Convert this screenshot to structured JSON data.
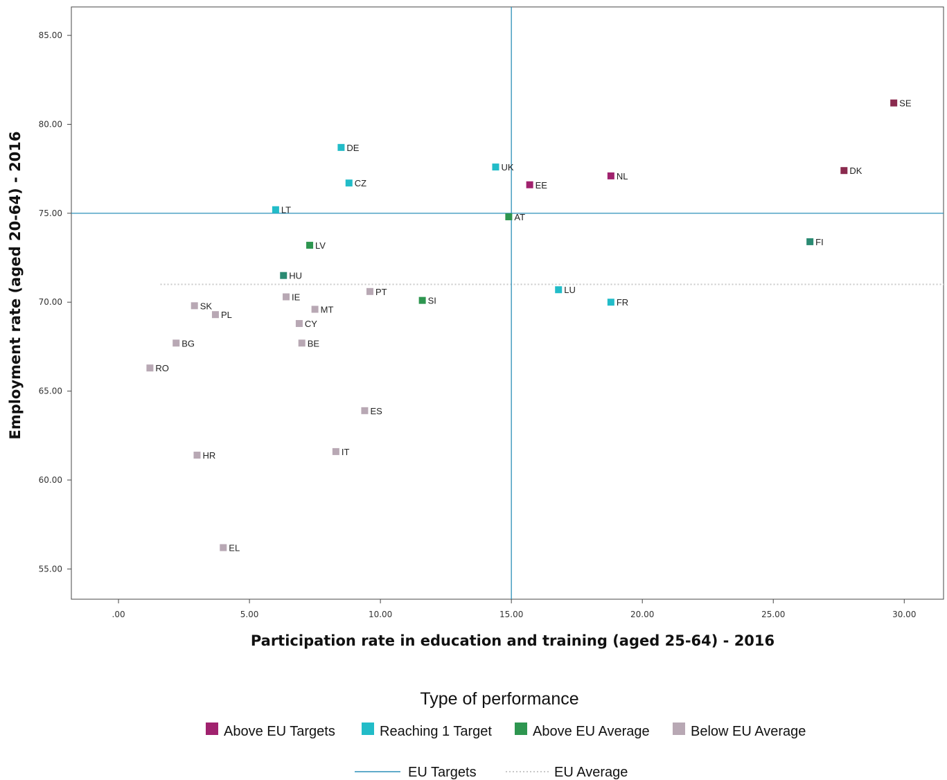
{
  "chart_data": {
    "type": "scatter",
    "xlabel": "Participation rate in education and training (aged 25-64) - 2016",
    "ylabel": "Employment rate  (aged 20-64) - 2016",
    "xlim": [
      -1.8,
      31.5
    ],
    "ylim": [
      53.3,
      86.6
    ],
    "x_ticks": [
      0,
      5,
      10,
      15,
      20,
      25,
      30
    ],
    "x_tick_labels": [
      ".00",
      "5.00",
      "10.00",
      "15.00",
      "20.00",
      "25.00",
      "30.00"
    ],
    "y_ticks": [
      55,
      60,
      65,
      70,
      75,
      80,
      85
    ],
    "y_tick_labels": [
      "55.00",
      "60.00",
      "65.00",
      "70.00",
      "75.00",
      "80.00",
      "85.00"
    ],
    "eu_target_x": 15.0,
    "eu_target_y": 75.0,
    "eu_average_y": 71.0,
    "eu_average_x_start": 1.6,
    "colors": {
      "above_targets": "#a0226e",
      "above_targets_dark": "#8a2a4e",
      "reaching_1_target": "#22bcc8",
      "above_average": "#2e9650",
      "above_average_teal": "#2a8a72",
      "below_average": "#b8a8b4",
      "target_line": "#2b8fb8",
      "average_line": "#c8c8c8"
    },
    "points": [
      {
        "code": "SE",
        "x": 29.6,
        "y": 81.2,
        "category": "above_targets_dark"
      },
      {
        "code": "DK",
        "x": 27.7,
        "y": 77.4,
        "category": "above_targets_dark"
      },
      {
        "code": "NL",
        "x": 18.8,
        "y": 77.1,
        "category": "above_targets"
      },
      {
        "code": "EE",
        "x": 15.7,
        "y": 76.6,
        "category": "above_targets"
      },
      {
        "code": "UK",
        "x": 14.4,
        "y": 77.6,
        "category": "reaching_1_target"
      },
      {
        "code": "DE",
        "x": 8.5,
        "y": 78.7,
        "category": "reaching_1_target"
      },
      {
        "code": "CZ",
        "x": 8.8,
        "y": 76.7,
        "category": "reaching_1_target"
      },
      {
        "code": "LT",
        "x": 6.0,
        "y": 75.2,
        "category": "reaching_1_target"
      },
      {
        "code": "LU",
        "x": 16.8,
        "y": 70.7,
        "category": "reaching_1_target"
      },
      {
        "code": "FR",
        "x": 18.8,
        "y": 70.0,
        "category": "reaching_1_target"
      },
      {
        "code": "AT",
        "x": 14.9,
        "y": 74.8,
        "category": "above_average"
      },
      {
        "code": "FI",
        "x": 26.4,
        "y": 73.4,
        "category": "above_average_teal"
      },
      {
        "code": "LV",
        "x": 7.3,
        "y": 73.2,
        "category": "above_average"
      },
      {
        "code": "HU",
        "x": 6.3,
        "y": 71.5,
        "category": "above_average_teal"
      },
      {
        "code": "SI",
        "x": 11.6,
        "y": 70.1,
        "category": "above_average"
      },
      {
        "code": "PT",
        "x": 9.6,
        "y": 70.6,
        "category": "below_average"
      },
      {
        "code": "IE",
        "x": 6.4,
        "y": 70.3,
        "category": "below_average"
      },
      {
        "code": "MT",
        "x": 7.5,
        "y": 69.6,
        "category": "below_average"
      },
      {
        "code": "SK",
        "x": 2.9,
        "y": 69.8,
        "category": "below_average"
      },
      {
        "code": "PL",
        "x": 3.7,
        "y": 69.3,
        "category": "below_average"
      },
      {
        "code": "CY",
        "x": 6.9,
        "y": 68.8,
        "category": "below_average"
      },
      {
        "code": "BG",
        "x": 2.2,
        "y": 67.7,
        "category": "below_average"
      },
      {
        "code": "BE",
        "x": 7.0,
        "y": 67.7,
        "category": "below_average"
      },
      {
        "code": "RO",
        "x": 1.2,
        "y": 66.3,
        "category": "below_average"
      },
      {
        "code": "ES",
        "x": 9.4,
        "y": 63.9,
        "category": "below_average"
      },
      {
        "code": "HR",
        "x": 3.0,
        "y": 61.4,
        "category": "below_average"
      },
      {
        "code": "IT",
        "x": 8.3,
        "y": 61.6,
        "category": "below_average"
      },
      {
        "code": "EL",
        "x": 4.0,
        "y": 56.2,
        "category": "below_average"
      }
    ],
    "legend": {
      "title": "Type of performance",
      "entries": [
        {
          "label": "Above EU Targets",
          "category": "above_targets"
        },
        {
          "label": "Reaching 1 Target",
          "category": "reaching_1_target"
        },
        {
          "label": "Above EU Average",
          "category": "above_average"
        },
        {
          "label": "Below  EU Average",
          "category": "below_average"
        }
      ],
      "lines": [
        {
          "label": "EU Targets",
          "style": "solid"
        },
        {
          "label": "EU Average",
          "style": "dotted"
        }
      ]
    }
  }
}
